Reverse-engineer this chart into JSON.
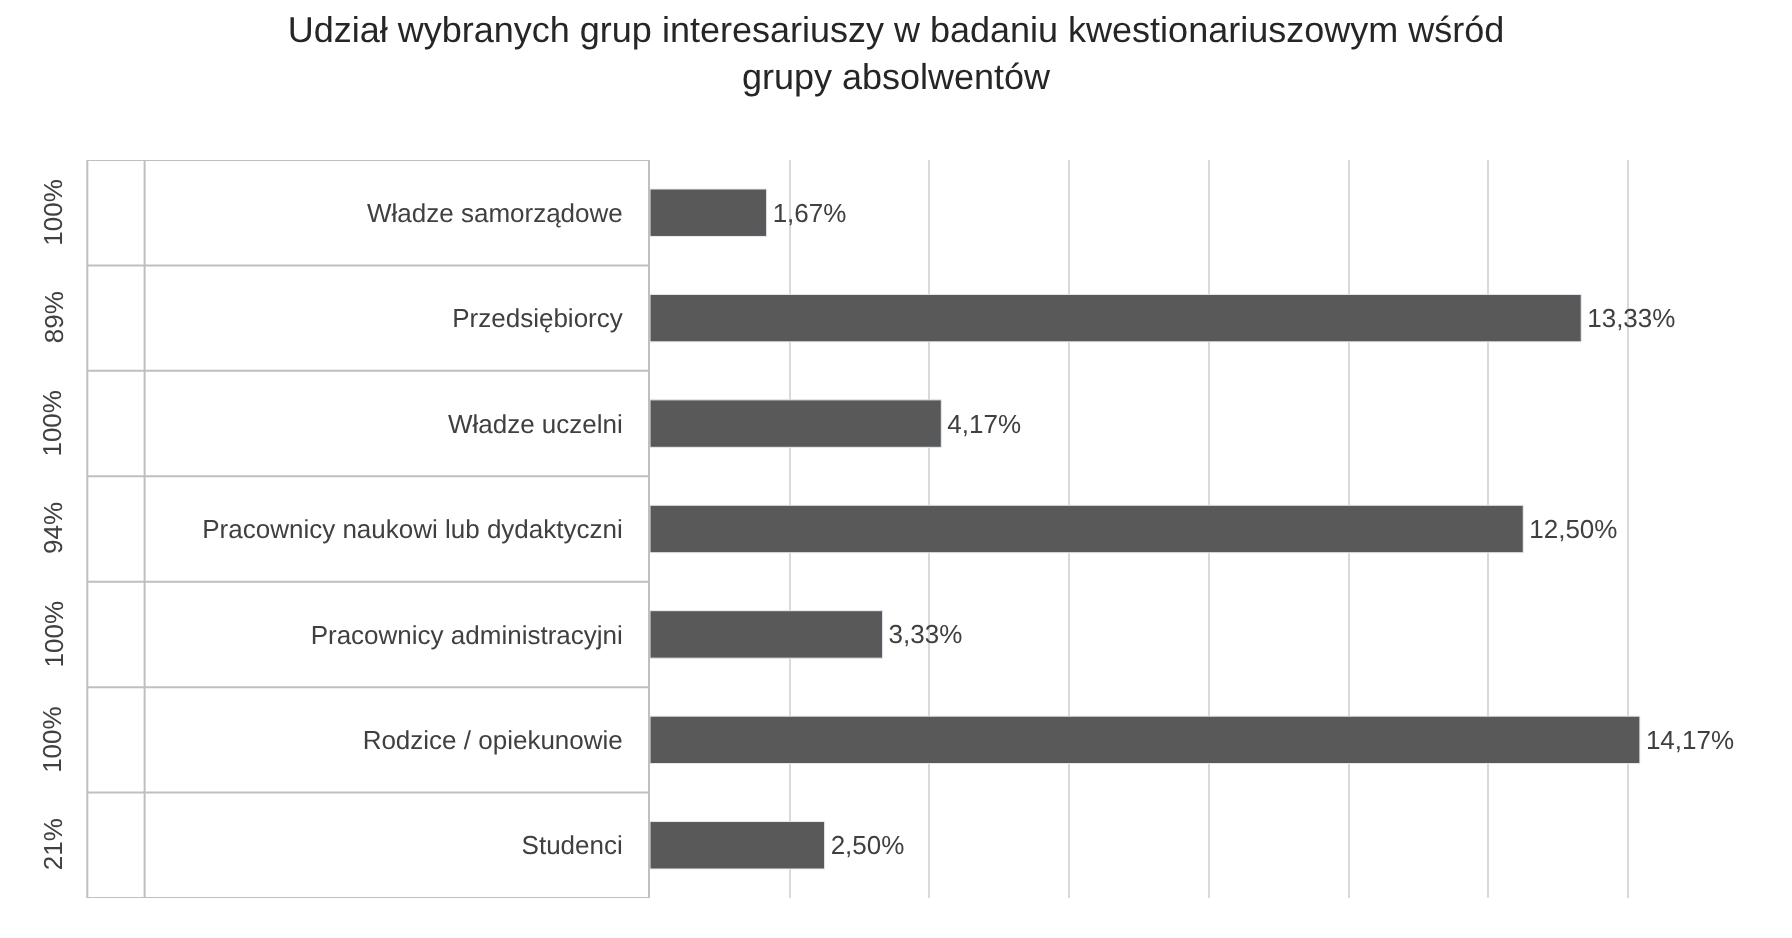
{
  "chart_data": {
    "type": "bar",
    "orientation": "horizontal",
    "title": "Udział wybranych grup interesariuszy w badaniu kwestionariuszowym wśród grupy absolwentów",
    "categories": [
      "Władze samorządowe",
      "Przedsiębiorcy",
      "Władze uczelni",
      "Pracownicy naukowi lub dydaktyczni",
      "Pracownicy administracyjni",
      "Rodzice / opiekunowie",
      "Studenci"
    ],
    "values": [
      1.67,
      13.33,
      4.17,
      12.5,
      3.33,
      14.17,
      2.5
    ],
    "value_labels": [
      "1,67%",
      "13,33%",
      "4,17%",
      "12,50%",
      "3,33%",
      "14,17%",
      "2,50%"
    ],
    "color": "#595959",
    "grid": "x",
    "annotations": [
      "100%",
      "89%",
      "100%",
      "94%",
      "100%",
      "100%",
      "21%"
    ]
  }
}
